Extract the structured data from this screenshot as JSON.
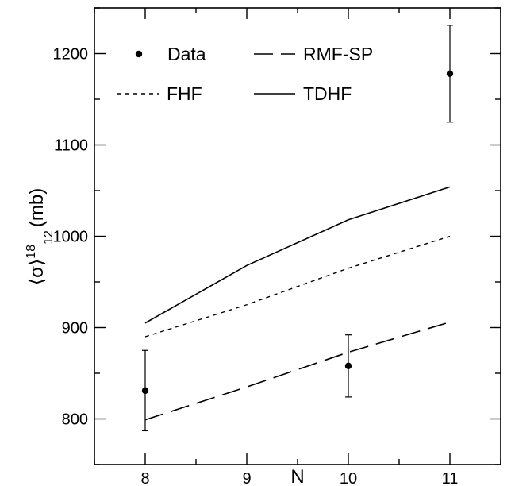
{
  "chart_data": {
    "type": "line",
    "xlabel": "N",
    "ylabel": {
      "prefix": "⟨σ⟩",
      "superscript": "18",
      "subscript": "12",
      "unit": "(mb)"
    },
    "xlim": [
      7.5,
      11.5
    ],
    "ylim": [
      750,
      1250
    ],
    "xticks": [
      8,
      9,
      10,
      11
    ],
    "yticks": [
      800,
      900,
      1000,
      1100,
      1200
    ],
    "grid": false,
    "legend_position": "top",
    "series": [
      {
        "name": "Data",
        "style": "points",
        "x": [
          8,
          10,
          11
        ],
        "y": [
          831,
          858,
          1178
        ],
        "yerr": [
          44,
          34,
          53
        ]
      },
      {
        "name": "RMF-SP",
        "style": "long-dash",
        "x": [
          8,
          9,
          10,
          11
        ],
        "y": [
          799,
          835,
          873,
          906
        ]
      },
      {
        "name": "FHF",
        "style": "dotted",
        "x": [
          8,
          9,
          10,
          11
        ],
        "y": [
          890,
          925,
          965,
          1000
        ]
      },
      {
        "name": "TDHF",
        "style": "solid",
        "x": [
          8,
          9,
          10,
          11
        ],
        "y": [
          905,
          968,
          1018,
          1054
        ]
      }
    ]
  }
}
